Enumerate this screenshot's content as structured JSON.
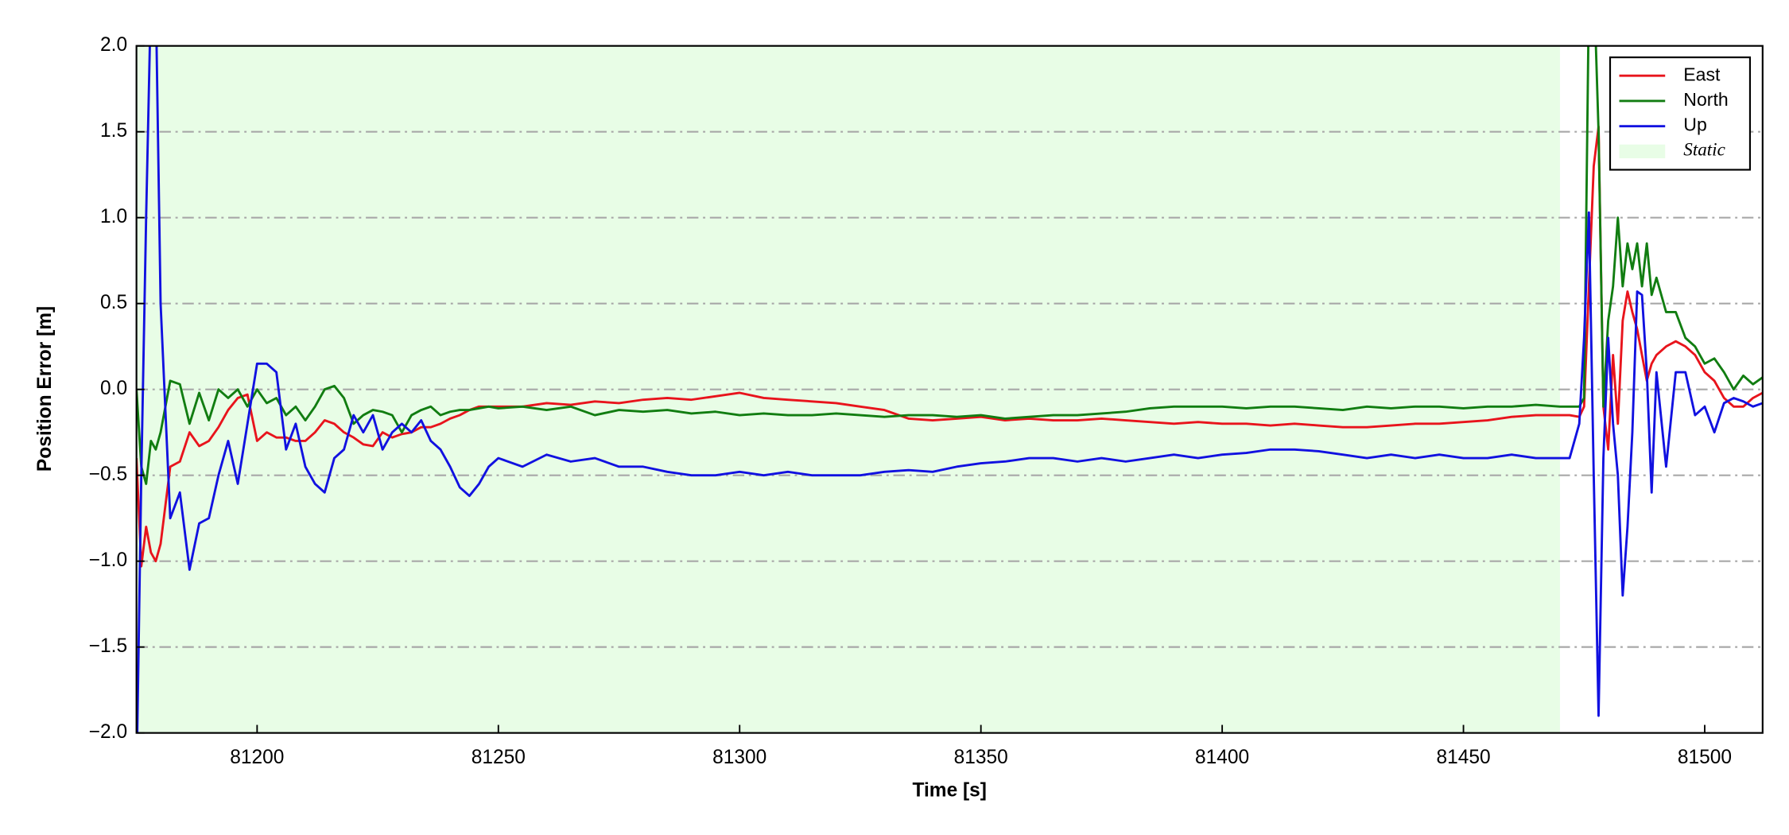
{
  "chart_data": {
    "type": "line",
    "xlabel": "Time [s]",
    "ylabel": "Position Error [m]",
    "xlim": [
      81175,
      81512
    ],
    "ylim": [
      -2.0,
      2.0
    ],
    "xticks": [
      81200,
      81250,
      81300,
      81350,
      81400,
      81450,
      81500
    ],
    "yticks": [
      {
        "value": -2.0,
        "label": "−2.0"
      },
      {
        "value": -1.5,
        "label": "−1.5"
      },
      {
        "value": -1.0,
        "label": "−1.0"
      },
      {
        "value": -0.5,
        "label": "−0.5"
      },
      {
        "value": 0.0,
        "label": "0.0"
      },
      0.5,
      {
        "value": 1.0,
        "label": "1.0"
      },
      1.5,
      {
        "value": 2.0,
        "label": "2.0"
      }
    ],
    "grid": true,
    "legend": "upper right",
    "static_span": {
      "name": "Static",
      "color": "#e8fde6",
      "range": [
        81175,
        81470
      ]
    },
    "x": [
      81175,
      81176,
      81177,
      81178,
      81179,
      81180,
      81182,
      81184,
      81186,
      81188,
      81190,
      81192,
      81194,
      81196,
      81198,
      81200,
      81202,
      81204,
      81206,
      81208,
      81210,
      81212,
      81214,
      81216,
      81218,
      81220,
      81222,
      81224,
      81226,
      81228,
      81230,
      81232,
      81234,
      81236,
      81238,
      81240,
      81242,
      81244,
      81246,
      81248,
      81250,
      81255,
      81260,
      81265,
      81270,
      81275,
      81280,
      81285,
      81290,
      81295,
      81300,
      81305,
      81310,
      81315,
      81320,
      81325,
      81330,
      81335,
      81340,
      81345,
      81350,
      81355,
      81360,
      81365,
      81370,
      81375,
      81380,
      81385,
      81390,
      81395,
      81400,
      81405,
      81410,
      81415,
      81420,
      81425,
      81430,
      81435,
      81440,
      81445,
      81450,
      81455,
      81460,
      81465,
      81470,
      81472,
      81474,
      81475,
      81476,
      81477,
      81478,
      81479,
      81480,
      81481,
      81482,
      81483,
      81484,
      81485,
      81486,
      81487,
      81488,
      81489,
      81490,
      81492,
      81494,
      81496,
      81498,
      81500,
      81502,
      81504,
      81506,
      81508,
      81510,
      81512
    ],
    "series": [
      {
        "name": "East",
        "color": "#e8141c",
        "values": [
          -0.4,
          -1.03,
          -0.8,
          -0.95,
          -1.0,
          -0.9,
          -0.45,
          -0.42,
          -0.25,
          -0.33,
          -0.3,
          -0.22,
          -0.12,
          -0.05,
          -0.03,
          -0.3,
          -0.25,
          -0.28,
          -0.28,
          -0.3,
          -0.3,
          -0.25,
          -0.18,
          -0.2,
          -0.25,
          -0.28,
          -0.32,
          -0.33,
          -0.25,
          -0.28,
          -0.26,
          -0.25,
          -0.22,
          -0.22,
          -0.2,
          -0.17,
          -0.15,
          -0.12,
          -0.1,
          -0.1,
          -0.1,
          -0.1,
          -0.08,
          -0.09,
          -0.07,
          -0.08,
          -0.06,
          -0.05,
          -0.06,
          -0.04,
          -0.02,
          -0.05,
          -0.06,
          -0.07,
          -0.08,
          -0.1,
          -0.12,
          -0.17,
          -0.18,
          -0.17,
          -0.16,
          -0.18,
          -0.17,
          -0.18,
          -0.18,
          -0.17,
          -0.18,
          -0.19,
          -0.2,
          -0.19,
          -0.2,
          -0.2,
          -0.21,
          -0.2,
          -0.21,
          -0.22,
          -0.22,
          -0.21,
          -0.2,
          -0.2,
          -0.19,
          -0.18,
          -0.16,
          -0.15,
          -0.15,
          -0.15,
          -0.16,
          -0.1,
          0.6,
          1.3,
          1.53,
          -0.1,
          -0.35,
          0.2,
          -0.2,
          0.4,
          0.57,
          0.45,
          0.35,
          0.2,
          0.05,
          0.15,
          0.2,
          0.25,
          0.28,
          0.25,
          0.2,
          0.1,
          0.05,
          -0.05,
          -0.1,
          -0.1,
          -0.05,
          -0.02
        ]
      },
      {
        "name": "North",
        "color": "#117d11",
        "values": [
          0.0,
          -0.45,
          -0.55,
          -0.3,
          -0.35,
          -0.25,
          0.05,
          0.03,
          -0.2,
          -0.02,
          -0.18,
          0.0,
          -0.05,
          0.0,
          -0.1,
          0.0,
          -0.08,
          -0.05,
          -0.15,
          -0.1,
          -0.18,
          -0.1,
          0.0,
          0.02,
          -0.05,
          -0.2,
          -0.15,
          -0.12,
          -0.13,
          -0.15,
          -0.25,
          -0.15,
          -0.12,
          -0.1,
          -0.15,
          -0.13,
          -0.12,
          -0.12,
          -0.11,
          -0.1,
          -0.11,
          -0.1,
          -0.12,
          -0.1,
          -0.15,
          -0.12,
          -0.13,
          -0.12,
          -0.14,
          -0.13,
          -0.15,
          -0.14,
          -0.15,
          -0.15,
          -0.14,
          -0.15,
          -0.16,
          -0.15,
          -0.15,
          -0.16,
          -0.15,
          -0.17,
          -0.16,
          -0.15,
          -0.15,
          -0.14,
          -0.13,
          -0.11,
          -0.1,
          -0.1,
          -0.1,
          -0.11,
          -0.1,
          -0.1,
          -0.11,
          -0.12,
          -0.1,
          -0.11,
          -0.1,
          -0.1,
          -0.11,
          -0.1,
          -0.1,
          -0.09,
          -0.1,
          -0.1,
          -0.1,
          -0.05,
          2.3,
          2.4,
          1.5,
          -0.1,
          0.4,
          0.6,
          1.0,
          0.6,
          0.85,
          0.7,
          0.85,
          0.6,
          0.85,
          0.55,
          0.65,
          0.45,
          0.45,
          0.3,
          0.25,
          0.15,
          0.18,
          0.1,
          0.0,
          0.08,
          0.03,
          0.07
        ]
      },
      {
        "name": "Up",
        "color": "#1111e0",
        "values": [
          -2.3,
          -0.5,
          1.0,
          2.3,
          2.3,
          0.5,
          -0.75,
          -0.6,
          -1.05,
          -0.78,
          -0.75,
          -0.5,
          -0.3,
          -0.55,
          -0.2,
          0.15,
          0.15,
          0.1,
          -0.35,
          -0.2,
          -0.45,
          -0.55,
          -0.6,
          -0.4,
          -0.35,
          -0.15,
          -0.25,
          -0.15,
          -0.35,
          -0.25,
          -0.2,
          -0.25,
          -0.18,
          -0.3,
          -0.35,
          -0.45,
          -0.57,
          -0.62,
          -0.55,
          -0.45,
          -0.4,
          -0.45,
          -0.38,
          -0.42,
          -0.4,
          -0.45,
          -0.45,
          -0.48,
          -0.5,
          -0.5,
          -0.48,
          -0.5,
          -0.48,
          -0.5,
          -0.5,
          -0.5,
          -0.48,
          -0.47,
          -0.48,
          -0.45,
          -0.43,
          -0.42,
          -0.4,
          -0.4,
          -0.42,
          -0.4,
          -0.42,
          -0.4,
          -0.38,
          -0.4,
          -0.38,
          -0.37,
          -0.35,
          -0.35,
          -0.36,
          -0.38,
          -0.4,
          -0.38,
          -0.4,
          -0.38,
          -0.4,
          -0.4,
          -0.38,
          -0.4,
          -0.4,
          -0.4,
          -0.2,
          0.3,
          1.03,
          -0.5,
          -1.9,
          -0.4,
          0.3,
          -0.2,
          -0.5,
          -1.2,
          -0.8,
          -0.25,
          0.57,
          0.55,
          0.1,
          -0.6,
          0.1,
          -0.45,
          0.1,
          0.1,
          -0.15,
          -0.1,
          -0.25,
          -0.08,
          -0.05,
          -0.07,
          -0.1,
          -0.08
        ]
      }
    ]
  }
}
